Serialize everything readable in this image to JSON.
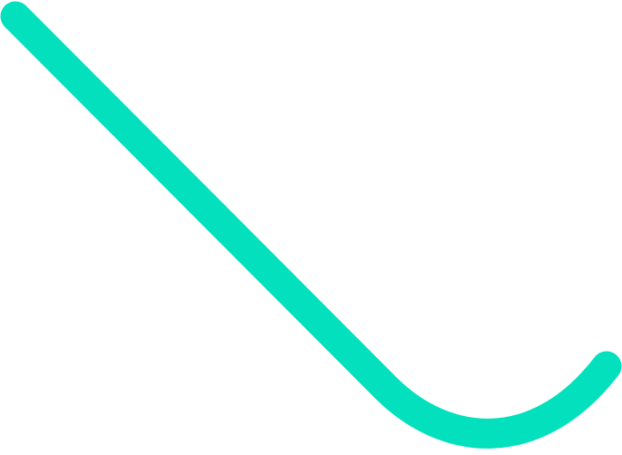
{
  "graphic": {
    "stroke_color": "#03e0bd",
    "background_color": "#ffffff",
    "shape": "curved-hook-line"
  }
}
